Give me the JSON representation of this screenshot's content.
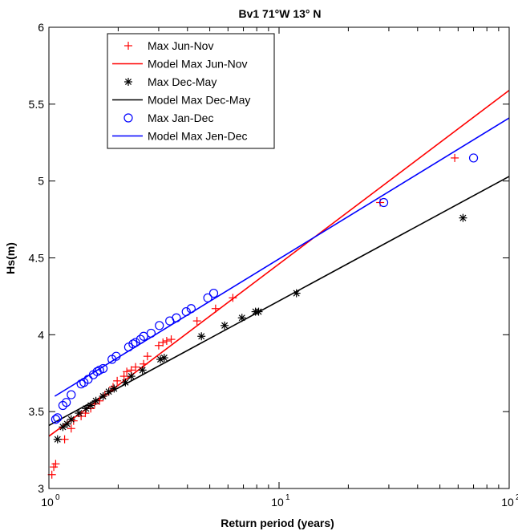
{
  "chart_data": {
    "type": "scatter",
    "title": "Bv1 71°W 13° N",
    "xlabel": "Return period (years)",
    "ylabel": "Hs(m)",
    "xscale": "log",
    "xlim": [
      1,
      100
    ],
    "ylim": [
      3,
      6
    ],
    "xticks": [
      {
        "value": 1,
        "base": "10",
        "exp": "0"
      },
      {
        "value": 10,
        "base": "10",
        "exp": "1"
      },
      {
        "value": 100,
        "base": "10",
        "exp": "2"
      }
    ],
    "yticks": [
      {
        "value": 3,
        "label": "3"
      },
      {
        "value": 3.5,
        "label": "3.5"
      },
      {
        "value": 4,
        "label": "4"
      },
      {
        "value": 4.5,
        "label": "4.5"
      },
      {
        "value": 5,
        "label": "5"
      },
      {
        "value": 5.5,
        "label": "5.5"
      },
      {
        "value": 6,
        "label": "6"
      }
    ],
    "legend_position": "top-left",
    "series": [
      {
        "name": "Max Jun-Nov",
        "kind": "marker",
        "marker": "plus",
        "color": "#ff0000",
        "points": [
          [
            1.03,
            3.09
          ],
          [
            1.05,
            3.14
          ],
          [
            1.07,
            3.16
          ],
          [
            1.17,
            3.32
          ],
          [
            1.25,
            3.39
          ],
          [
            1.28,
            3.44
          ],
          [
            1.38,
            3.47
          ],
          [
            1.44,
            3.49
          ],
          [
            1.52,
            3.52
          ],
          [
            1.58,
            3.55
          ],
          [
            1.66,
            3.57
          ],
          [
            1.75,
            3.61
          ],
          [
            1.82,
            3.63
          ],
          [
            1.9,
            3.66
          ],
          [
            1.98,
            3.7
          ],
          [
            2.12,
            3.73
          ],
          [
            2.18,
            3.76
          ],
          [
            2.28,
            3.77
          ],
          [
            2.38,
            3.79
          ],
          [
            2.58,
            3.81
          ],
          [
            2.68,
            3.86
          ],
          [
            3.0,
            3.93
          ],
          [
            3.13,
            3.95
          ],
          [
            3.25,
            3.96
          ],
          [
            3.4,
            3.97
          ],
          [
            4.4,
            4.09
          ],
          [
            5.3,
            4.17
          ],
          [
            6.3,
            4.24
          ],
          [
            27.5,
            4.86
          ],
          [
            58.0,
            5.15
          ]
        ]
      },
      {
        "name": "Model Max Jun-Nov",
        "kind": "line",
        "color": "#ff0000",
        "points": [
          [
            1,
            3.34
          ],
          [
            1.8,
            3.62
          ],
          [
            100,
            5.59
          ]
        ]
      },
      {
        "name": "Max Dec-May",
        "kind": "marker",
        "marker": "asterisk",
        "color": "#000000",
        "points": [
          [
            1.09,
            3.32
          ],
          [
            1.15,
            3.4
          ],
          [
            1.2,
            3.42
          ],
          [
            1.25,
            3.45
          ],
          [
            1.35,
            3.49
          ],
          [
            1.45,
            3.52
          ],
          [
            1.52,
            3.54
          ],
          [
            1.6,
            3.57
          ],
          [
            1.72,
            3.6
          ],
          [
            1.82,
            3.63
          ],
          [
            1.92,
            3.65
          ],
          [
            2.15,
            3.69
          ],
          [
            2.28,
            3.73
          ],
          [
            2.55,
            3.77
          ],
          [
            3.05,
            3.84
          ],
          [
            3.17,
            3.85
          ],
          [
            4.6,
            3.99
          ],
          [
            5.8,
            4.06
          ],
          [
            6.9,
            4.11
          ],
          [
            7.9,
            4.15
          ],
          [
            8.15,
            4.15
          ],
          [
            11.9,
            4.27
          ],
          [
            63.0,
            4.76
          ]
        ]
      },
      {
        "name": "Model Max Dec-May",
        "kind": "line",
        "color": "#000000",
        "points": [
          [
            1,
            3.41
          ],
          [
            100,
            5.03
          ]
        ]
      },
      {
        "name": "Max Jan-Dec",
        "kind": "marker",
        "marker": "circle",
        "color": "#0000ff",
        "points": [
          [
            1.07,
            3.45
          ],
          [
            1.09,
            3.46
          ],
          [
            1.15,
            3.54
          ],
          [
            1.19,
            3.56
          ],
          [
            1.25,
            3.61
          ],
          [
            1.38,
            3.68
          ],
          [
            1.42,
            3.69
          ],
          [
            1.48,
            3.71
          ],
          [
            1.56,
            3.74
          ],
          [
            1.62,
            3.76
          ],
          [
            1.66,
            3.77
          ],
          [
            1.72,
            3.78
          ],
          [
            1.88,
            3.84
          ],
          [
            1.96,
            3.86
          ],
          [
            2.22,
            3.92
          ],
          [
            2.32,
            3.94
          ],
          [
            2.38,
            3.95
          ],
          [
            2.5,
            3.97
          ],
          [
            2.58,
            3.99
          ],
          [
            2.78,
            4.01
          ],
          [
            3.02,
            4.06
          ],
          [
            3.35,
            4.09
          ],
          [
            3.58,
            4.11
          ],
          [
            3.95,
            4.15
          ],
          [
            4.15,
            4.17
          ],
          [
            4.9,
            4.24
          ],
          [
            5.2,
            4.27
          ],
          [
            28.5,
            4.86
          ],
          [
            70.0,
            5.15
          ]
        ]
      },
      {
        "name": "Model Max Jen-Dec",
        "kind": "line",
        "color": "#0000ff",
        "points": [
          [
            1.06,
            3.6
          ],
          [
            100,
            5.41
          ]
        ]
      }
    ]
  }
}
